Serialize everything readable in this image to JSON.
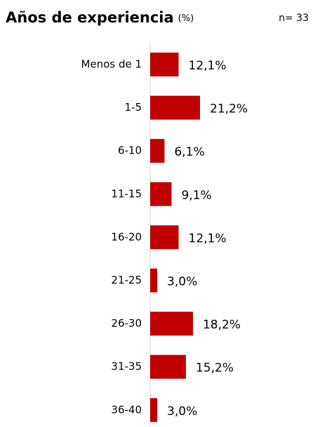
{
  "chart_data": {
    "type": "bar",
    "orientation": "horizontal",
    "title": "Años de experiencia",
    "title_unit": "(%)",
    "sample": "n= 33",
    "categories": [
      "Menos de 1",
      "1-5",
      "6-10",
      "11-15",
      "16-20",
      "21-25",
      "26-30",
      "31-35",
      "36-40"
    ],
    "values": [
      12.1,
      21.2,
      6.1,
      9.1,
      12.1,
      3.0,
      18.2,
      15.2,
      3.0
    ],
    "value_labels": [
      "12,1%",
      "21,2%",
      "6,1%",
      "9,1%",
      "12,1%",
      "3,0%",
      "18,2%",
      "15,2%",
      "3,0%"
    ],
    "color": "#c00000"
  }
}
